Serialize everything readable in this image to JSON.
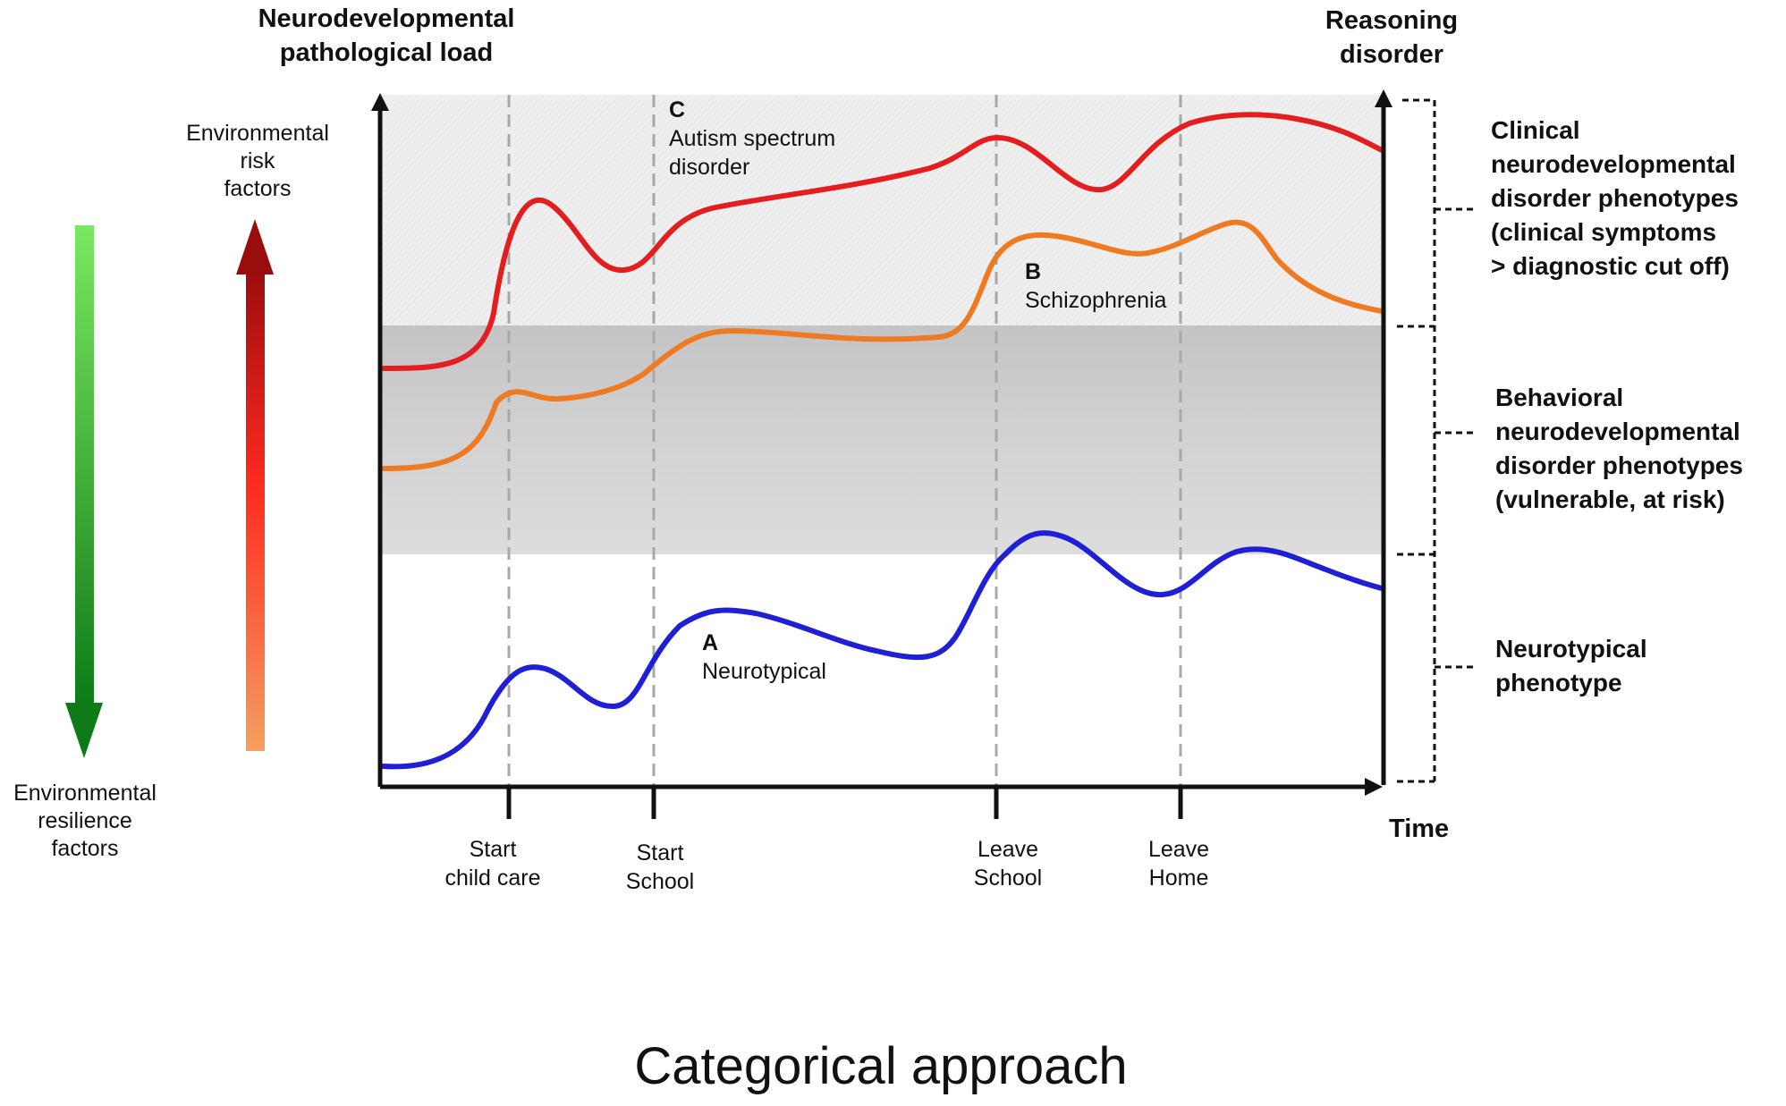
{
  "axes": {
    "y_left_title_line1": "Neurodevelopmental",
    "y_left_title_line2": "pathological load",
    "y_right_title_line1": "Reasoning",
    "y_right_title_line2": "disorder",
    "x_title": "Time"
  },
  "environment": {
    "risk_line1": "Environmental",
    "risk_line2": "risk",
    "risk_line3": "factors",
    "resilience_line1": "Environmental",
    "resilience_line2": "resilience",
    "resilience_line3": "factors",
    "risk_color_top": "#9a0d0d",
    "risk_color_mid": "#ff2a20",
    "risk_color_bottom": "#f4a060",
    "resilience_color_top": "#7ae860",
    "resilience_color_bottom": "#0e7a18"
  },
  "milestones": [
    {
      "line1": "Start",
      "line2": "child care"
    },
    {
      "line1": "Start",
      "line2": "School"
    },
    {
      "line1": "Leave",
      "line2": "School"
    },
    {
      "line1": "Leave",
      "line2": "Home"
    }
  ],
  "bands": {
    "clinical": {
      "line1": "Clinical",
      "line2": "neurodevelopmental",
      "line3": "disorder phenotypes",
      "line4": "(clinical symptoms",
      "line5": "> diagnostic cut off)",
      "color": "#eeeeee"
    },
    "behavioral": {
      "line1": "Behavioral",
      "line2": "neurodevelopmental",
      "line3": "disorder phenotypes",
      "line4": "(vulnerable, at risk)",
      "color": "#cfcfcf"
    },
    "neurotypical": {
      "line1": "Neurotypical",
      "line2": "phenotype",
      "color": "#ffffff"
    }
  },
  "curves": {
    "a": {
      "letter": "A",
      "name": "Neurotypical",
      "color": "#1f1fd6"
    },
    "b": {
      "letter": "B",
      "name": "Schizophrenia",
      "color": "#ee7a22"
    },
    "c": {
      "letter": "C",
      "name_line1": "Autism spectrum",
      "name_line2": "disorder",
      "color": "#e41e1e"
    }
  },
  "footer": {
    "title": "Categorical approach"
  }
}
